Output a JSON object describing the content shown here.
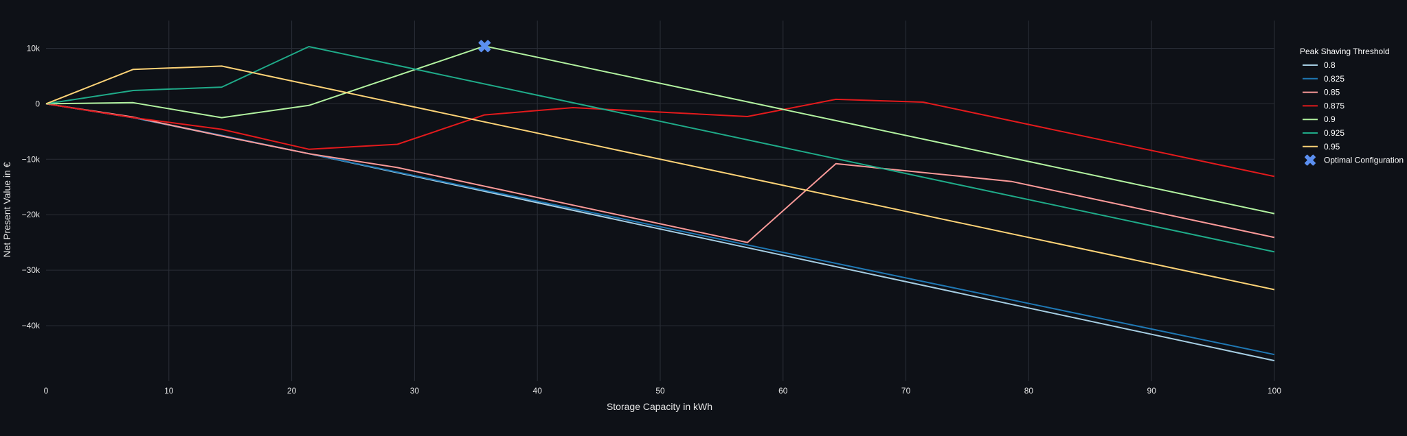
{
  "chart_data": {
    "type": "line",
    "title": "",
    "xlabel": "Storage Capacity in kWh",
    "ylabel": "Net Present Value in €",
    "xlim": [
      0,
      100
    ],
    "ylim": [
      -50000,
      15000
    ],
    "x_ticks": [
      0,
      10,
      20,
      30,
      40,
      50,
      60,
      70,
      80,
      90,
      100
    ],
    "y_ticks": [
      10000,
      0,
      -10000,
      -20000,
      -30000,
      -40000
    ],
    "y_tick_labels": [
      "10k",
      "0",
      "−10k",
      "−20k",
      "−30k",
      "−40k"
    ],
    "grid": true,
    "legend_title": "Peak Shaving Threshold",
    "legend_position": "right",
    "series": [
      {
        "name": "0.8",
        "color": "#a6cee3",
        "x": [
          0,
          7.1,
          14.3,
          21.4,
          100
        ],
        "y": [
          0,
          -2500,
          -5800,
          -9000,
          -46300
        ]
      },
      {
        "name": "0.825",
        "color": "#1f78b4",
        "x": [
          0,
          7.1,
          14.3,
          21.4,
          100
        ],
        "y": [
          0,
          -2500,
          -5700,
          -9000,
          -45200
        ]
      },
      {
        "name": "0.85",
        "color": "#fb9a99",
        "x": [
          0,
          7.1,
          14.3,
          21.4,
          28.6,
          57.1,
          64.3,
          78.6,
          100
        ],
        "y": [
          0,
          -2400,
          -5800,
          -9000,
          -11500,
          -25000,
          -10800,
          -14000,
          -24100
        ]
      },
      {
        "name": "0.875",
        "color": "#e31a1c",
        "x": [
          0,
          7.1,
          14.3,
          21.4,
          28.6,
          35.7,
          42.9,
          57.1,
          64.3,
          71.4,
          100
        ],
        "y": [
          0,
          -2500,
          -4600,
          -8200,
          -7300,
          -2000,
          -700,
          -2300,
          800,
          300,
          -13100
        ]
      },
      {
        "name": "0.9",
        "color": "#b2f2a0",
        "x": [
          0,
          7.1,
          14.3,
          21.4,
          35.7,
          100
        ],
        "y": [
          0,
          200,
          -2500,
          -300,
          10400,
          -19800
        ]
      },
      {
        "name": "0.925",
        "color": "#1fab89",
        "x": [
          0,
          7.1,
          14.3,
          21.4,
          100
        ],
        "y": [
          0,
          2400,
          3000,
          10300,
          -26700
        ]
      },
      {
        "name": "0.95",
        "color": "#fdd377",
        "x": [
          0,
          7.1,
          14.3,
          100
        ],
        "y": [
          0,
          6200,
          6800,
          -33500
        ]
      }
    ],
    "optimal": {
      "name": "Optimal Configuration",
      "x": 35.7,
      "y": 10400,
      "color": "#5b8ff0"
    }
  }
}
